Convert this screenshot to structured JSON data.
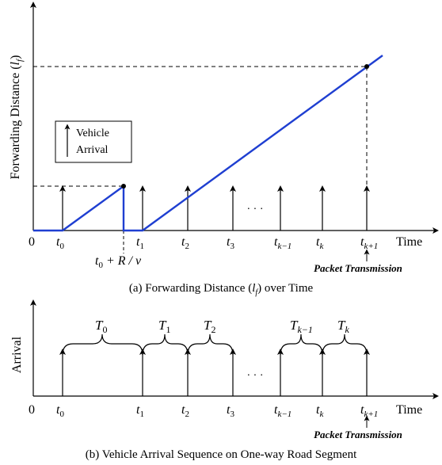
{
  "diagram": {
    "top": {
      "ylabel_main": "Forwarding Distance (",
      "ylabel_var": "l",
      "ylabel_sub": "f",
      "ylabel_close": ")",
      "origin": "0",
      "time_label": "Time",
      "legend_line1": "Vehicle",
      "legend_line2": "Arrival",
      "ellipsis": "· · ·",
      "packet_label": "Packet Transmission",
      "rv_prefix": "t",
      "rv_sub": "0",
      "rv_expr": " + R / v",
      "ticks": [
        {
          "base": "t",
          "sub": "0"
        },
        {
          "base": "t",
          "sub": "1"
        },
        {
          "base": "t",
          "sub": "2"
        },
        {
          "base": "t",
          "sub": "3"
        },
        {
          "base": "t",
          "sub": "k−1"
        },
        {
          "base": "t",
          "sub": "k"
        },
        {
          "base": "t",
          "sub": "k+1"
        }
      ],
      "caption_pre": "(a) Forwarding Distance (",
      "caption_var": "l",
      "caption_sub": "f",
      "caption_post": ") over Time",
      "line_color": "#1f3fd1"
    },
    "bottom": {
      "ylabel": "Arrival",
      "origin": "0",
      "time_label": "Time",
      "ellipsis": "· · ·",
      "packet_label": "Packet Transmission",
      "ticks": [
        {
          "base": "t",
          "sub": "0"
        },
        {
          "base": "t",
          "sub": "1"
        },
        {
          "base": "t",
          "sub": "2"
        },
        {
          "base": "t",
          "sub": "3"
        },
        {
          "base": "t",
          "sub": "k−1"
        },
        {
          "base": "t",
          "sub": "k"
        },
        {
          "base": "t",
          "sub": "k+1"
        }
      ],
      "intervals": [
        {
          "base": "T",
          "sub": "0"
        },
        {
          "base": "T",
          "sub": "1"
        },
        {
          "base": "T",
          "sub": "2"
        },
        {
          "base": "T",
          "sub": "k−1"
        },
        {
          "base": "T",
          "sub": "k"
        }
      ],
      "caption": "(b) Vehicle Arrival Sequence on One-way Road Segment"
    }
  }
}
